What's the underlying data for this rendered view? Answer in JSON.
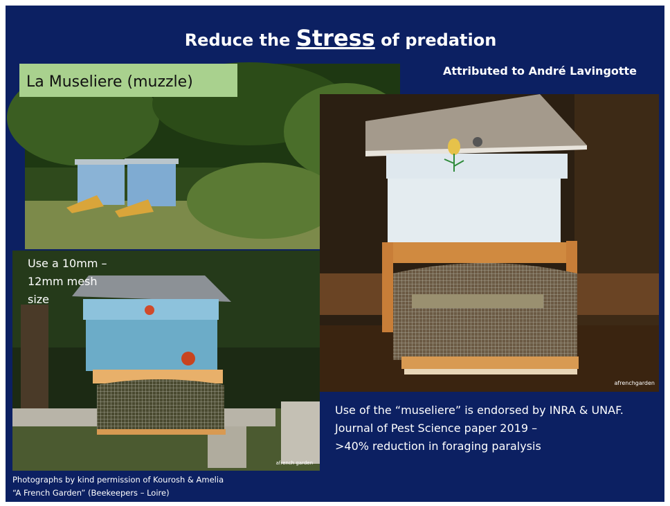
{
  "title": {
    "prefix": "Reduce the",
    "emphasis": "Stress",
    "suffix": "of predation"
  },
  "subtitle": "Attributed to André Lavingotte",
  "label": "La Museliere (muzzle)",
  "mesh_note": [
    "Use a 10mm –",
    "12mm mesh",
    "size"
  ],
  "photo_watermarks": [
    "afrenchgarden",
    "afrench garden"
  ],
  "endorsement": [
    "Use of the “museliere” is endorsed by INRA & UNAF.",
    "Journal of Pest Science paper 2019 –",
    ">40% reduction in foraging paralysis"
  ],
  "credit": [
    "Photographs by kind permission of Kourosh & Amelia",
    "“A French Garden” (Beekeepers – Loire)"
  ]
}
